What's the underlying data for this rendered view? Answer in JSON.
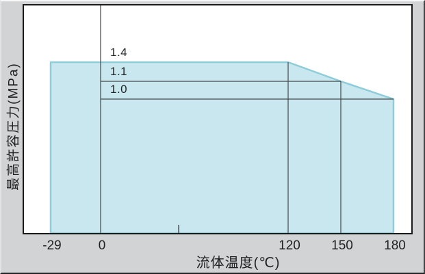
{
  "axes": {
    "x_title": "流体温度(℃)",
    "y_title": "最高許容圧力(MPa)"
  },
  "chart_data": {
    "type": "area",
    "title": "",
    "xlabel": "流体温度(℃)",
    "ylabel": "最高許容圧力(MPa)",
    "x_unit": "℃",
    "y_unit": "MPa",
    "x_range": [
      -29,
      180
    ],
    "y_values_shown": [
      1.0,
      1.1,
      1.4
    ],
    "grid": "partial",
    "legend": "none",
    "rating_curve": {
      "comment_visible_meaning": "maximum allowable pressure vs fluid temperature; shaded region = allowable operating envelope",
      "x": [
        -29,
        120,
        150,
        180
      ],
      "y": [
        1.4,
        1.4,
        1.1,
        1.0
      ]
    },
    "x_ticks": [
      {
        "value": -29,
        "label": "-29"
      },
      {
        "value": 0,
        "label": "0"
      },
      {
        "value": 120,
        "label": "120"
      },
      {
        "value": 150,
        "label": "150"
      },
      {
        "value": 180,
        "label": "180"
      }
    ],
    "x_minor_ticks": [
      50
    ],
    "vertical_lines": [
      {
        "x": 0,
        "from": "plot-top"
      },
      {
        "x": 120,
        "from": "curve"
      },
      {
        "x": 150,
        "from": "curve"
      }
    ],
    "pressure_levels": [
      {
        "label": "1.4",
        "value": 1.4,
        "draw_line": false,
        "x_end": 120
      },
      {
        "label": "1.1",
        "value": 1.1,
        "draw_line": true,
        "x_end": 150
      },
      {
        "label": "1.0",
        "value": 1.0,
        "draw_line": true,
        "x_end": 180
      }
    ],
    "colors": {
      "region_fill": "#c8e7ee",
      "region_edge": "#8fccd9",
      "gridline": "#41484b",
      "plot_border": "#1a1a1a",
      "background": "#d1d3d5"
    }
  }
}
